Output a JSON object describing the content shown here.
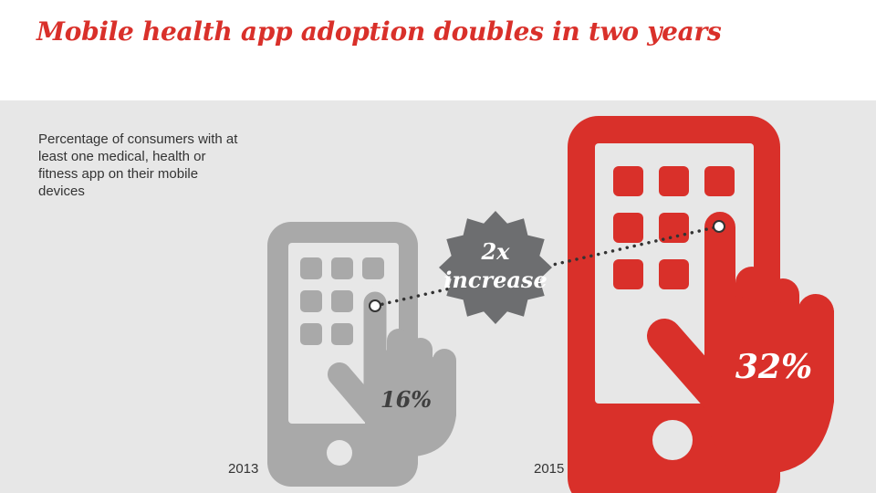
{
  "title": "Mobile health app adoption doubles in two years",
  "description": "Percentage of consumers with at least one medical, health or fitness app on their mobile devices",
  "badge": {
    "line1": "2x",
    "line2": "increase"
  },
  "colors": {
    "accent": "#d9302a",
    "gray_phone": "#a9a9a9",
    "badge": "#6d6e70",
    "background": "#e7e7e7"
  },
  "chart_data": {
    "type": "pictogram",
    "categories": [
      "2013",
      "2015"
    ],
    "values": [
      16,
      32
    ],
    "value_labels": [
      "16%",
      "32%"
    ],
    "unit": "%"
  }
}
